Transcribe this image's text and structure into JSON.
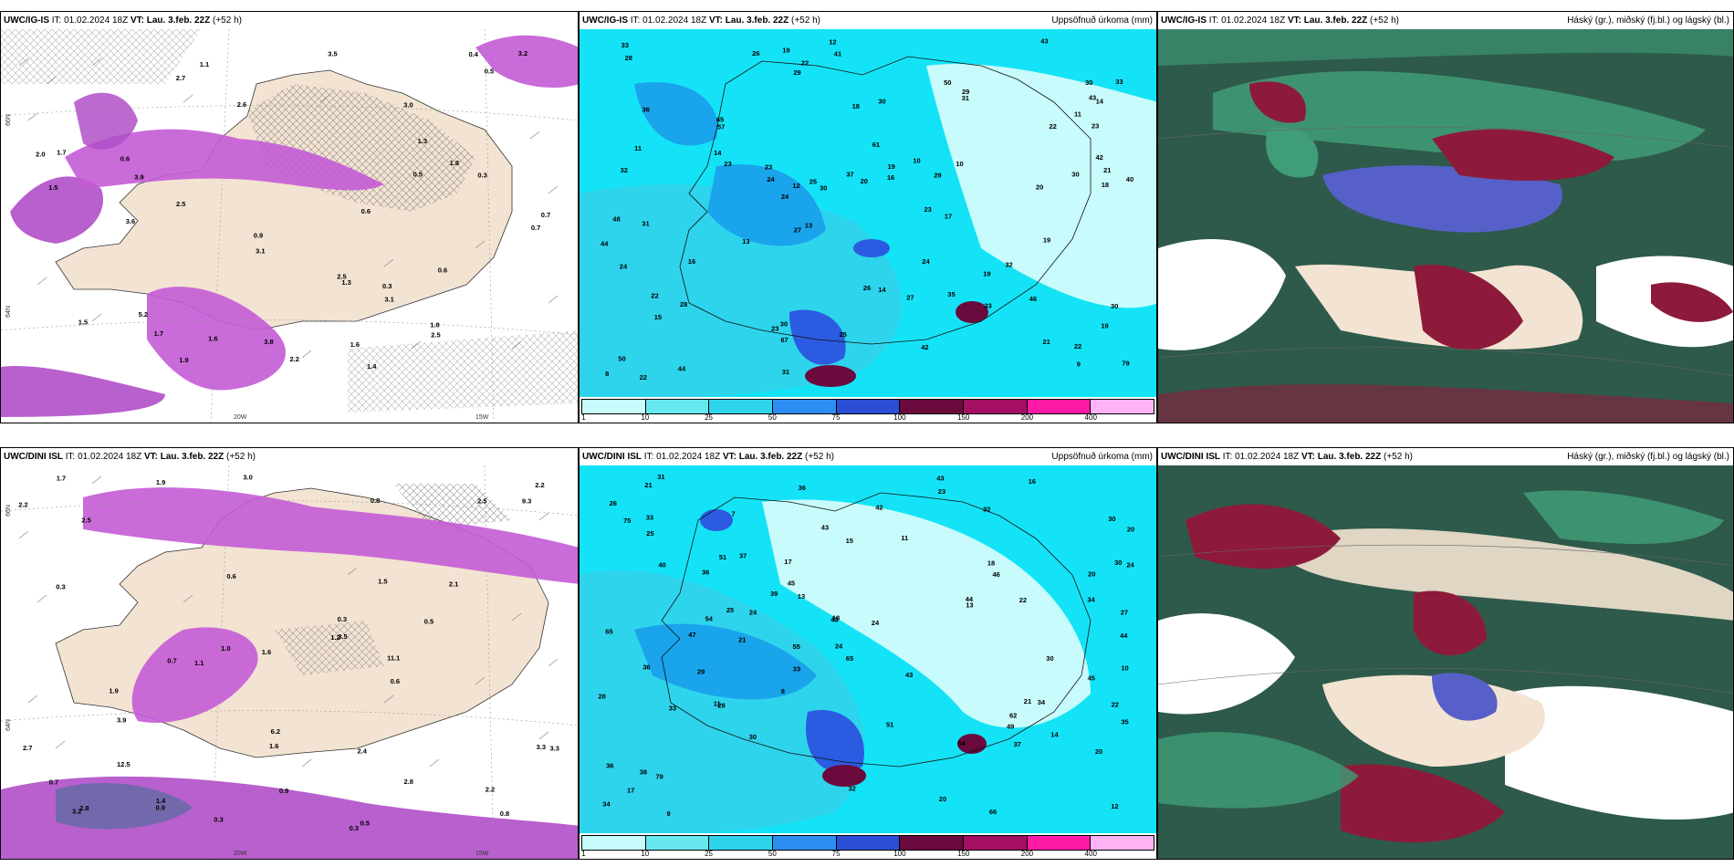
{
  "rows": [
    {
      "wind_panel": {
        "title_prefix": "UWC/IG-IS",
        "title_it": "IT: 01.02.2024 18Z",
        "title_vt_label": "VT:",
        "title_vt": "Lau. 3.feb. 22Z",
        "title_lead": "(+52 h)",
        "lon_label_1": "20W",
        "lon_label_2": "15W",
        "lat_label_1": "66N",
        "lat_label_2": "64N",
        "values": [
          "1.4",
          "2.7",
          "5.2",
          "0.6",
          "1.8",
          "1.6",
          "0.7",
          "2.5",
          "3.1",
          "1.7",
          "1.5",
          "2.0",
          "0.9",
          "2.5",
          "0.5",
          "0.4",
          "1.5",
          "0.5",
          "0.6",
          "0.3",
          "1.8",
          "1.3",
          "1.9",
          "2.5",
          "0.6",
          "1.3",
          "3.6",
          "3.9",
          "2.2",
          "2.6",
          "3.1",
          "3.2",
          "3.0",
          "1.6",
          "1.1",
          "3.8",
          "3.5",
          "1.7",
          "0.7",
          "0.3"
        ]
      },
      "precip_panel": {
        "title_prefix": "UWC/IG-IS",
        "title_it": "IT: 01.02.2024 18Z",
        "title_vt_label": "VT:",
        "title_vt": "Lau. 3.feb. 22Z",
        "title_lead": "(+52 h)",
        "title_right": "Uppsöfnuð úrkoma (mm)",
        "values": [
          "22",
          "19",
          "26",
          "23",
          "19",
          "29",
          "23",
          "20",
          "25",
          "14",
          "10",
          "18",
          "24",
          "30",
          "27",
          "23",
          "36",
          "35",
          "30",
          "28",
          "26",
          "23",
          "22",
          "41",
          "33",
          "42",
          "43",
          "44",
          "50",
          "79",
          "57",
          "67",
          "65",
          "61",
          "48",
          "43",
          "24",
          "32",
          "29",
          "28",
          "33",
          "42",
          "40",
          "22",
          "23",
          "25",
          "27",
          "29",
          "46",
          "44",
          "19",
          "12",
          "17",
          "22",
          "18",
          "24",
          "30",
          "37",
          "14",
          "11",
          "10",
          "21",
          "31",
          "30",
          "32",
          "33",
          "50",
          "31",
          "30",
          "11",
          "14",
          "12",
          "13",
          "19",
          "15",
          "16",
          "13",
          "9",
          "8",
          "21",
          "22",
          "24",
          "20",
          "31",
          "30",
          "19",
          "16"
        ],
        "legend_ticks": [
          "1",
          "10",
          "25",
          "50",
          "75",
          "100",
          "150",
          "200",
          "400"
        ]
      },
      "cloud_panel": {
        "title_prefix": "UWC/IG-IS",
        "title_it": "IT: 01.02.2024 18Z",
        "title_vt_label": "VT:",
        "title_vt": "Lau. 3.feb. 22Z",
        "title_lead": "(+52 h)",
        "title_right": "Háský (gr.), miðský (fj.bl.) og lágský (bl.)"
      }
    },
    {
      "wind_panel": {
        "title_prefix": "UWC/DINI ISL",
        "title_it": "IT: 01.02.2024 18Z",
        "title_vt_label": "VT:",
        "title_vt": "Lau. 3.feb. 22Z",
        "title_lead": "(+52 h)",
        "lon_label_1": "20W",
        "lon_label_2": "15W",
        "lat_label_1": "66N",
        "lat_label_2": "64N",
        "values": [
          "0.3",
          "0.3",
          "1.4",
          "2.8",
          "1.9",
          "2.5",
          "0.7",
          "0.8",
          "3.0",
          "0.6",
          "2.5",
          "0.9",
          "1.0",
          "1.6",
          "0.8",
          "1.2",
          "0.3",
          "0.9",
          "1.1",
          "2.2",
          "2.4",
          "2.2",
          "0.3",
          "3.2",
          "2.1",
          "1.9",
          "2.7",
          "3.9",
          "1.7",
          "0.6",
          "1.6",
          "0.5",
          "6.2",
          "9.3",
          "12.5",
          "11.1",
          "3.3",
          "0.7",
          "1.5",
          "2.2",
          "3.5",
          "0.5",
          "3.3",
          "2.8"
        ]
      },
      "precip_panel": {
        "title_prefix": "UWC/DINI ISL",
        "title_it": "IT: 01.02.2024 18Z",
        "title_vt_label": "VT:",
        "title_vt": "Lau. 3.feb. 22Z",
        "title_lead": "(+52 h)",
        "title_right": "Uppsöfnuð úrkoma (mm)",
        "values": [
          "42",
          "43",
          "45",
          "24",
          "23",
          "20",
          "21",
          "13",
          "17",
          "21",
          "17",
          "30",
          "36",
          "21",
          "43",
          "34",
          "31",
          "18",
          "20",
          "15",
          "28",
          "26",
          "32",
          "40",
          "30",
          "65",
          "24",
          "36",
          "22",
          "51",
          "37",
          "49",
          "46",
          "54",
          "66",
          "55",
          "79",
          "65",
          "62",
          "43",
          "44",
          "37",
          "35",
          "34",
          "54",
          "75",
          "47",
          "45",
          "34",
          "33",
          "32",
          "29",
          "28",
          "30",
          "20",
          "25",
          "27",
          "24",
          "33",
          "38",
          "39",
          "36",
          "43",
          "44",
          "51",
          "30",
          "20",
          "25",
          "33",
          "36",
          "12",
          "11",
          "13",
          "9",
          "14",
          "7",
          "10",
          "11",
          "8",
          "16",
          "18",
          "24",
          "22"
        ],
        "legend_ticks": [
          "1",
          "10",
          "25",
          "50",
          "75",
          "100",
          "150",
          "200",
          "400"
        ]
      },
      "cloud_panel": {
        "title_prefix": "UWC/DINI ISL",
        "title_it": "IT: 01.02.2024 18Z",
        "title_vt_label": "VT:",
        "title_vt": "Lau. 3.feb. 22Z",
        "title_lead": "(+52 h)",
        "title_right": "Háský (gr.), miðský (fj.bl.) og lágský (bl.)"
      }
    }
  ],
  "legend_colors": [
    "#c8fbfb",
    "#67e8ef",
    "#2ed4ec",
    "#2b8ef0",
    "#2a4fd6",
    "#6a0a3d",
    "#a40e63",
    "#ff1aa6",
    "#ffb3f5"
  ],
  "colors": {
    "land": "#f3e3d2",
    "sea_precip": "#14e3f7",
    "precip_mid": "#1aa4ec",
    "precip_heavy": "#2b5be0",
    "snow_pink": "#c45bd6",
    "cloud_dark": "#2e5a4b",
    "cloud_green": "#3f9d77",
    "cloud_red": "#8d1a3a",
    "cloud_blue": "#5660c8"
  }
}
